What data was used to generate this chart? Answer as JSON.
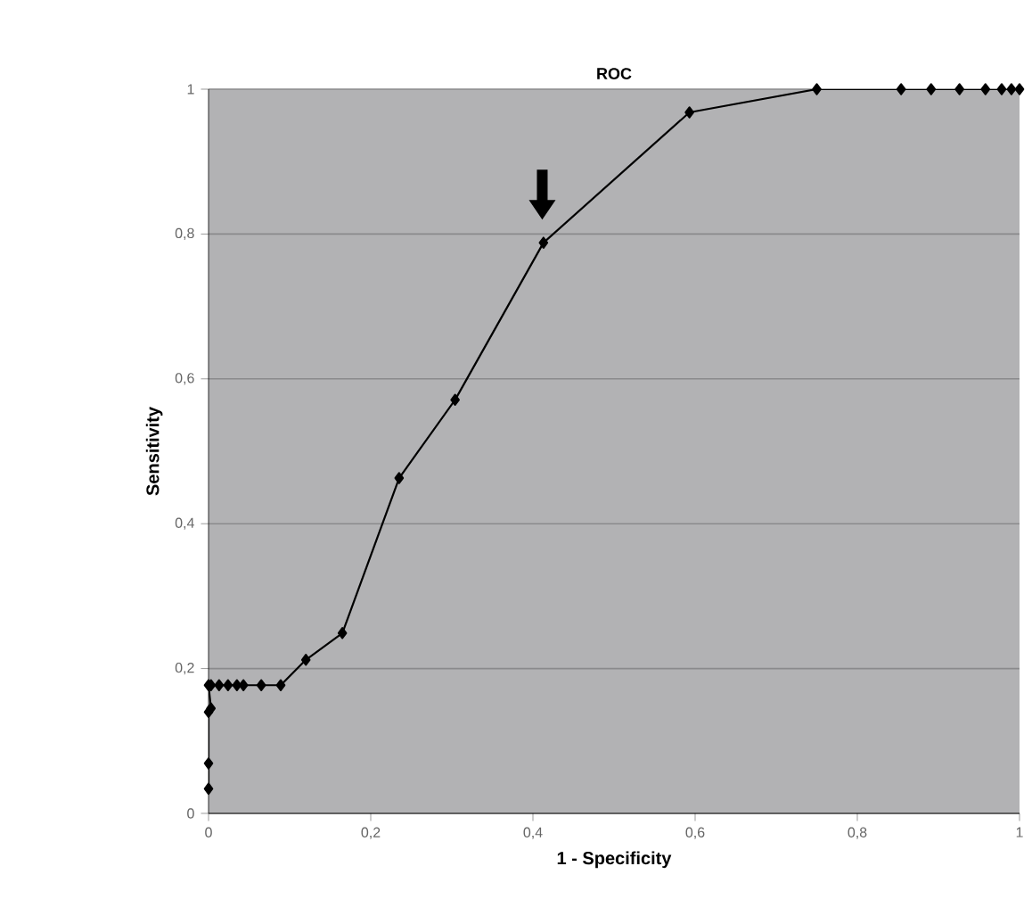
{
  "chart_data": {
    "type": "line",
    "title": "ROC",
    "xlabel": "1 - Specificity",
    "ylabel": "Sensitivity",
    "xlim": [
      0,
      1
    ],
    "ylim": [
      0,
      1
    ],
    "xticks": [
      0,
      {
        "value": 0.2,
        "label": "0,2"
      },
      {
        "value": 0.4,
        "label": "0,4"
      },
      {
        "value": 0.6,
        "label": "0,6"
      },
      {
        "value": 0.8,
        "label": "0,8"
      },
      1
    ],
    "yticks": [
      0,
      {
        "value": 0.2,
        "label": "0,2"
      },
      {
        "value": 0.4,
        "label": "0,4"
      },
      {
        "value": 0.6,
        "label": "0,6"
      },
      {
        "value": 0.8,
        "label": "0,8"
      },
      1
    ],
    "grid": "y",
    "marker": "diamond",
    "line_style": "solid",
    "series": [
      {
        "color": "#000000",
        "x": [
          0,
          0,
          0,
          0.003,
          0,
          0.003,
          0.013,
          0.024,
          0.035,
          0.043,
          0.065,
          0.089,
          0.12,
          0.165,
          0.235,
          0.304,
          0.413,
          0.593,
          0.75,
          0.854,
          0.891,
          0.926,
          0.958,
          0.978,
          0.99,
          1
        ],
        "values": [
          0.034,
          0.069,
          0.14,
          0.145,
          0.177,
          0.177,
          0.177,
          0.177,
          0.177,
          0.177,
          0.177,
          0.177,
          0.212,
          0.249,
          0.463,
          0.571,
          0.788,
          0.968,
          1,
          1,
          1,
          1,
          1,
          1,
          1,
          1
        ]
      }
    ]
  }
}
